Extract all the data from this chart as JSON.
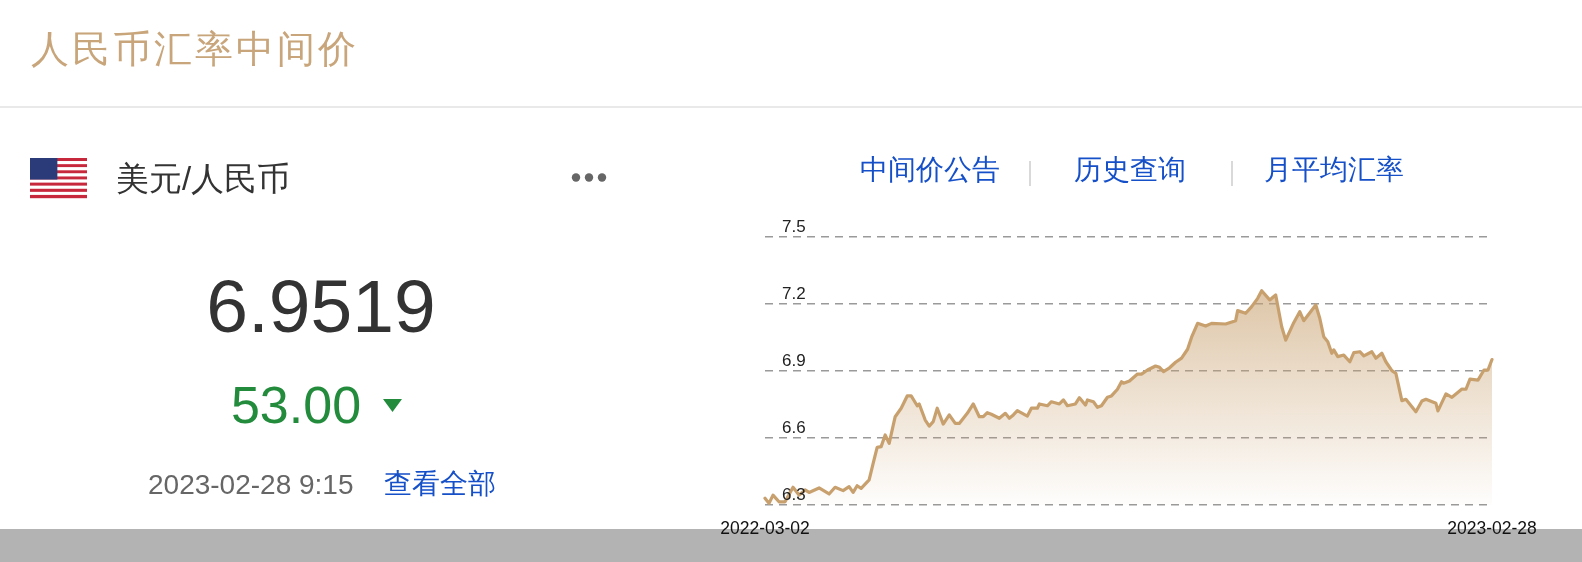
{
  "chart_data": [
    {
      "type": "other",
      "title": "人民币汇率中间价",
      "subtitle": "美元/人民币",
      "annotations": [
        "6.9519",
        "53.00",
        "2023-02-28 9:15",
        "查看全部"
      ]
    },
    {
      "type": "area",
      "annotations": [
        "中间价公告",
        "历史查询",
        "月平均汇率"
      ],
      "color": "#c8a06e",
      "xlim": [
        "2022-03-02",
        "2023-02-28"
      ],
      "xticks": [
        "2022-03-02",
        "2023-02-28"
      ],
      "ylim": [
        6.3,
        7.5
      ],
      "yticks": [
        6.3,
        6.6,
        6.9,
        7.2,
        7.5
      ],
      "grid": "y",
      "x": [
        "2022-03-02",
        "2022-03-04",
        "2022-03-06",
        "2022-03-09",
        "2022-03-12",
        "2022-03-16",
        "2022-03-19",
        "2022-03-22",
        "2022-03-24",
        "2022-03-29",
        "2022-04-03",
        "2022-04-06",
        "2022-04-10",
        "2022-04-13",
        "2022-04-15",
        "2022-04-17",
        "2022-04-19",
        "2022-04-23",
        "2022-04-25",
        "2022-04-27",
        "2022-04-29",
        "2022-05-01",
        "2022-05-03",
        "2022-05-06",
        "2022-05-09",
        "2022-05-12",
        "2022-05-14",
        "2022-05-17",
        "2022-05-18",
        "2022-05-21",
        "2022-05-23",
        "2022-05-25",
        "2022-05-27",
        "2022-05-30",
        "2022-06-02",
        "2022-06-05",
        "2022-06-07",
        "2022-06-11",
        "2022-06-14",
        "2022-06-17",
        "2022-06-19",
        "2022-06-21",
        "2022-06-23",
        "2022-06-27",
        "2022-06-30",
        "2022-07-02",
        "2022-07-04",
        "2022-07-06",
        "2022-07-11",
        "2022-07-13",
        "2022-07-16",
        "2022-07-17",
        "2022-07-21",
        "2022-07-23",
        "2022-07-27",
        "2022-07-29",
        "2022-07-31",
        "2022-08-04",
        "2022-08-06",
        "2022-08-09",
        "2022-08-10",
        "2022-08-13",
        "2022-08-15",
        "2022-08-17",
        "2022-08-20",
        "2022-08-22",
        "2022-08-25",
        "2022-08-27",
        "2022-08-28",
        "2022-08-31",
        "2022-09-04",
        "2022-09-06",
        "2022-09-09",
        "2022-09-13",
        "2022-09-15",
        "2022-09-17",
        "2022-09-20",
        "2022-09-23",
        "2022-09-26",
        "2022-09-29",
        "2022-10-01",
        "2022-10-04",
        "2022-10-08",
        "2022-10-11",
        "2022-10-18",
        "2022-10-23",
        "2022-10-24",
        "2022-10-28",
        "2022-10-31",
        "2022-11-03",
        "2022-11-05",
        "2022-11-09",
        "2022-11-12",
        "2022-11-15",
        "2022-11-17",
        "2022-11-21",
        "2022-11-24",
        "2022-11-26",
        "2022-12-02",
        "2022-12-04",
        "2022-12-06",
        "2022-12-08",
        "2022-12-10",
        "2022-12-11",
        "2022-12-13",
        "2022-12-16",
        "2022-12-19",
        "2022-12-21",
        "2022-12-24",
        "2022-12-26",
        "2022-12-30",
        "2023-01-01",
        "2023-01-04",
        "2023-01-06",
        "2023-01-09",
        "2023-01-11",
        "2023-01-14",
        "2023-01-16",
        "2023-01-21",
        "2023-01-24",
        "2023-01-26",
        "2023-01-31",
        "2023-02-01",
        "2023-02-05",
        "2023-02-08",
        "2023-02-10",
        "2023-02-13",
        "2023-02-15",
        "2023-02-17",
        "2023-02-21",
        "2023-02-24",
        "2023-02-26",
        "2023-02-28"
      ],
      "values": [
        6.329,
        6.306,
        6.343,
        6.313,
        6.313,
        6.378,
        6.343,
        6.366,
        6.355,
        6.375,
        6.348,
        6.378,
        6.363,
        6.381,
        6.355,
        6.385,
        6.373,
        6.411,
        6.485,
        6.557,
        6.56,
        6.612,
        6.575,
        6.694,
        6.732,
        6.787,
        6.787,
        6.743,
        6.751,
        6.679,
        6.652,
        6.672,
        6.732,
        6.661,
        6.702,
        6.664,
        6.664,
        6.709,
        6.751,
        6.694,
        6.694,
        6.712,
        6.705,
        6.687,
        6.709,
        6.687,
        6.702,
        6.721,
        6.697,
        6.732,
        6.732,
        6.751,
        6.743,
        6.761,
        6.751,
        6.769,
        6.743,
        6.751,
        6.779,
        6.746,
        6.769,
        6.761,
        6.736,
        6.743,
        6.781,
        6.787,
        6.817,
        6.851,
        6.844,
        6.854,
        6.885,
        6.885,
        6.903,
        6.921,
        6.915,
        6.896,
        6.913,
        6.938,
        6.956,
        6.996,
        7.05,
        7.112,
        7.1,
        7.112,
        7.109,
        7.124,
        7.169,
        7.157,
        7.187,
        7.224,
        7.258,
        7.217,
        7.239,
        7.097,
        7.037,
        7.115,
        7.164,
        7.124,
        7.194,
        7.135,
        7.052,
        7.03,
        6.978,
        6.993,
        6.963,
        6.97,
        6.94,
        6.981,
        6.985,
        6.966,
        6.985,
        6.956,
        6.978,
        6.94,
        6.9,
        6.888,
        6.766,
        6.772,
        6.716,
        6.764,
        6.772,
        6.754,
        6.72,
        6.796,
        6.781,
        6.796,
        6.818,
        6.817,
        6.862,
        6.858,
        6.903,
        6.903,
        6.95
      ]
    }
  ]
}
